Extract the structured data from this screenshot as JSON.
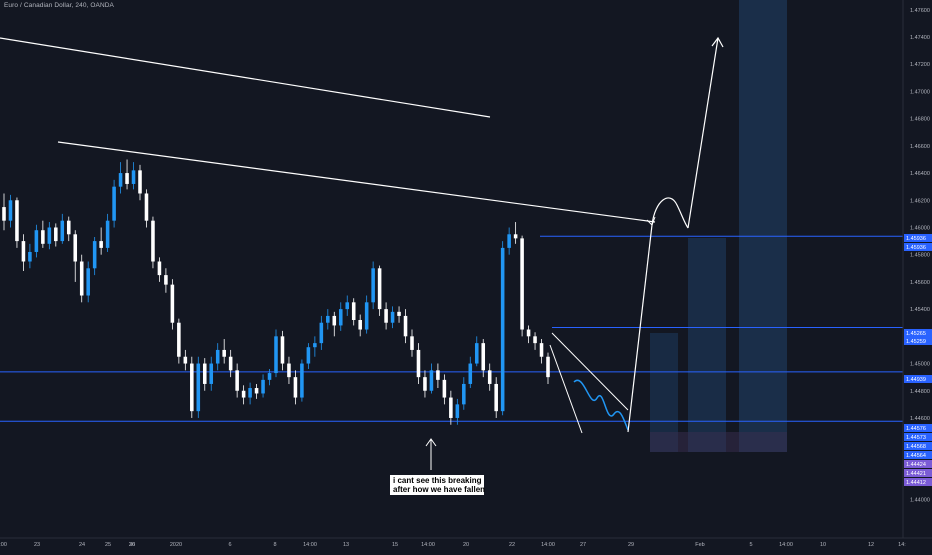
{
  "header": {
    "title": "Euro / Canadian Dollar, 240, OANDA"
  },
  "annotation": {
    "line1": "i cant see this breaking",
    "line2": "after how we have fallen"
  },
  "colors": {
    "background": "#131722",
    "up_candle": "#2196f3",
    "down_candle": "#ffffff",
    "horizontal_line": "#2962ff",
    "zone_fill": "#1e3a5f",
    "purple_tag": "#7b5cd6"
  },
  "chart_data": {
    "type": "candlestick",
    "title": "Euro / Canadian Dollar, 240, OANDA",
    "ylim": [
      1.4385,
      1.4765
    ],
    "y_ticks": [
      "1.47600",
      "1.47400",
      "1.47200",
      "1.47000",
      "1.46800",
      "1.46600",
      "1.46400",
      "1.46200",
      "1.46000",
      "1.45800",
      "1.45600",
      "1.45400",
      "1.45200",
      "1.45000",
      "1.44800",
      "1.44600",
      "1.44400",
      "1.44200",
      "1.44000"
    ],
    "x_ticks": [
      "14:00",
      "23",
      "24",
      "25",
      "26",
      "30",
      "2020",
      "6",
      "8",
      "14:00",
      "13",
      "15",
      "14:00",
      "20",
      "22",
      "14:00",
      "27",
      "29",
      "Feb",
      "5",
      "14:00",
      "10",
      "12",
      "14:"
    ],
    "horizontal_levels": [
      1.45936,
      1.45265,
      1.44939,
      1.44576
    ],
    "price_tags": [
      {
        "text": "1.45936",
        "color": "#2962ff"
      },
      {
        "text": "1.45936",
        "color": "#2962ff"
      },
      {
        "text": "1.45265",
        "color": "#2962ff"
      },
      {
        "text": "1.45259",
        "color": "#2962ff"
      },
      {
        "text": "1.44939",
        "color": "#2962ff"
      },
      {
        "text": "1.44576",
        "color": "#2962ff"
      },
      {
        "text": "1.44573",
        "color": "#2962ff"
      },
      {
        "text": "1.44568",
        "color": "#2962ff"
      },
      {
        "text": "1.44564",
        "color": "#2962ff"
      },
      {
        "text": "1.44424",
        "color": "#7b5cd6"
      },
      {
        "text": "1.44421",
        "color": "#7b5cd6"
      },
      {
        "text": "1.44412",
        "color": "#7b5cd6"
      }
    ],
    "candles": [
      [
        1.4615,
        1.4605,
        1.4625,
        1.4598
      ],
      [
        1.4605,
        1.462,
        1.4624,
        1.46
      ],
      [
        1.462,
        1.459,
        1.4622,
        1.4585
      ],
      [
        1.459,
        1.4575,
        1.4595,
        1.4568
      ],
      [
        1.4575,
        1.4582,
        1.4588,
        1.457
      ],
      [
        1.4582,
        1.4598,
        1.4602,
        1.4578
      ],
      [
        1.4598,
        1.4588,
        1.4605,
        1.4585
      ],
      [
        1.4588,
        1.46,
        1.4604,
        1.4584
      ],
      [
        1.46,
        1.459,
        1.4603,
        1.4586
      ],
      [
        1.459,
        1.4605,
        1.461,
        1.4588
      ],
      [
        1.4605,
        1.4595,
        1.4608,
        1.459
      ],
      [
        1.4595,
        1.4575,
        1.4598,
        1.456
      ],
      [
        1.4575,
        1.455,
        1.458,
        1.4545
      ],
      [
        1.455,
        1.457,
        1.4575,
        1.4545
      ],
      [
        1.457,
        1.459,
        1.4593,
        1.4565
      ],
      [
        1.459,
        1.4585,
        1.46,
        1.458
      ],
      [
        1.4585,
        1.4605,
        1.461,
        1.4582
      ],
      [
        1.4605,
        1.463,
        1.4635,
        1.46
      ],
      [
        1.463,
        1.464,
        1.4648,
        1.4625
      ],
      [
        1.464,
        1.4632,
        1.465,
        1.4628
      ],
      [
        1.4632,
        1.4642,
        1.4648,
        1.4628
      ],
      [
        1.4642,
        1.4625,
        1.4646,
        1.462
      ],
      [
        1.4625,
        1.4605,
        1.4628,
        1.46
      ],
      [
        1.4605,
        1.4575,
        1.4608,
        1.457
      ],
      [
        1.4575,
        1.4565,
        1.4578,
        1.456
      ],
      [
        1.4565,
        1.4558,
        1.457,
        1.4552
      ],
      [
        1.4558,
        1.453,
        1.4562,
        1.4525
      ],
      [
        1.453,
        1.4505,
        1.4533,
        1.45
      ],
      [
        1.4505,
        1.45,
        1.451,
        1.4495
      ],
      [
        1.45,
        1.4465,
        1.4505,
        1.446
      ],
      [
        1.4465,
        1.45,
        1.4505,
        1.446
      ],
      [
        1.45,
        1.4485,
        1.4504,
        1.448
      ],
      [
        1.4485,
        1.45,
        1.4505,
        1.448
      ],
      [
        1.45,
        1.451,
        1.4515,
        1.4495
      ],
      [
        1.451,
        1.4505,
        1.4518,
        1.45
      ],
      [
        1.4505,
        1.4495,
        1.451,
        1.449
      ],
      [
        1.4495,
        1.448,
        1.45,
        1.4475
      ],
      [
        1.448,
        1.4475,
        1.4484,
        1.447
      ],
      [
        1.4475,
        1.4482,
        1.4486,
        1.447
      ],
      [
        1.4482,
        1.4478,
        1.4485,
        1.4474
      ],
      [
        1.4478,
        1.4488,
        1.4492,
        1.4475
      ],
      [
        1.4488,
        1.4493,
        1.4496,
        1.4484
      ],
      [
        1.4493,
        1.452,
        1.4525,
        1.449
      ],
      [
        1.452,
        1.45,
        1.4524,
        1.4495
      ],
      [
        1.45,
        1.449,
        1.4505,
        1.4485
      ],
      [
        1.449,
        1.4475,
        1.4495,
        1.447
      ],
      [
        1.4475,
        1.45,
        1.4503,
        1.4472
      ],
      [
        1.45,
        1.4512,
        1.4515,
        1.4496
      ],
      [
        1.4512,
        1.4515,
        1.452,
        1.4505
      ],
      [
        1.4515,
        1.453,
        1.4535,
        1.451
      ],
      [
        1.453,
        1.4535,
        1.454,
        1.4525
      ],
      [
        1.4535,
        1.4528,
        1.4538,
        1.452
      ],
      [
        1.4528,
        1.454,
        1.4545,
        1.4524
      ],
      [
        1.454,
        1.4545,
        1.455,
        1.4535
      ],
      [
        1.4545,
        1.4532,
        1.4548,
        1.4528
      ],
      [
        1.4532,
        1.4525,
        1.4536,
        1.452
      ],
      [
        1.4525,
        1.4545,
        1.455,
        1.4522
      ],
      [
        1.4545,
        1.457,
        1.4575,
        1.454
      ],
      [
        1.457,
        1.454,
        1.4572,
        1.4535
      ],
      [
        1.454,
        1.453,
        1.4545,
        1.4525
      ],
      [
        1.453,
        1.4538,
        1.4542,
        1.4526
      ],
      [
        1.4538,
        1.4535,
        1.4542,
        1.453
      ],
      [
        1.4535,
        1.452,
        1.454,
        1.4515
      ],
      [
        1.452,
        1.451,
        1.4525,
        1.4505
      ],
      [
        1.451,
        1.449,
        1.4515,
        1.4485
      ],
      [
        1.449,
        1.448,
        1.4495,
        1.4475
      ],
      [
        1.448,
        1.4495,
        1.45,
        1.4478
      ],
      [
        1.4495,
        1.4488,
        1.45,
        1.4482
      ],
      [
        1.4488,
        1.4475,
        1.4492,
        1.447
      ],
      [
        1.4475,
        1.446,
        1.448,
        1.4455
      ],
      [
        1.446,
        1.447,
        1.4474,
        1.4455
      ],
      [
        1.447,
        1.4485,
        1.449,
        1.4466
      ],
      [
        1.4485,
        1.45,
        1.4505,
        1.4482
      ],
      [
        1.45,
        1.4515,
        1.452,
        1.4498
      ],
      [
        1.4515,
        1.4495,
        1.4518,
        1.449
      ],
      [
        1.4495,
        1.4485,
        1.45,
        1.448
      ],
      [
        1.4485,
        1.4465,
        1.449,
        1.446
      ],
      [
        1.4465,
        1.4585,
        1.459,
        1.4462
      ],
      [
        1.4585,
        1.4595,
        1.46,
        1.458
      ],
      [
        1.4595,
        1.4592,
        1.4604,
        1.4588
      ],
      [
        1.4592,
        1.4525,
        1.4594,
        1.452
      ],
      [
        1.4525,
        1.452,
        1.4528,
        1.4515
      ],
      [
        1.452,
        1.4515,
        1.4523,
        1.451
      ],
      [
        1.4515,
        1.4505,
        1.4518,
        1.45
      ],
      [
        1.4505,
        1.449,
        1.4508,
        1.4485
      ]
    ]
  }
}
